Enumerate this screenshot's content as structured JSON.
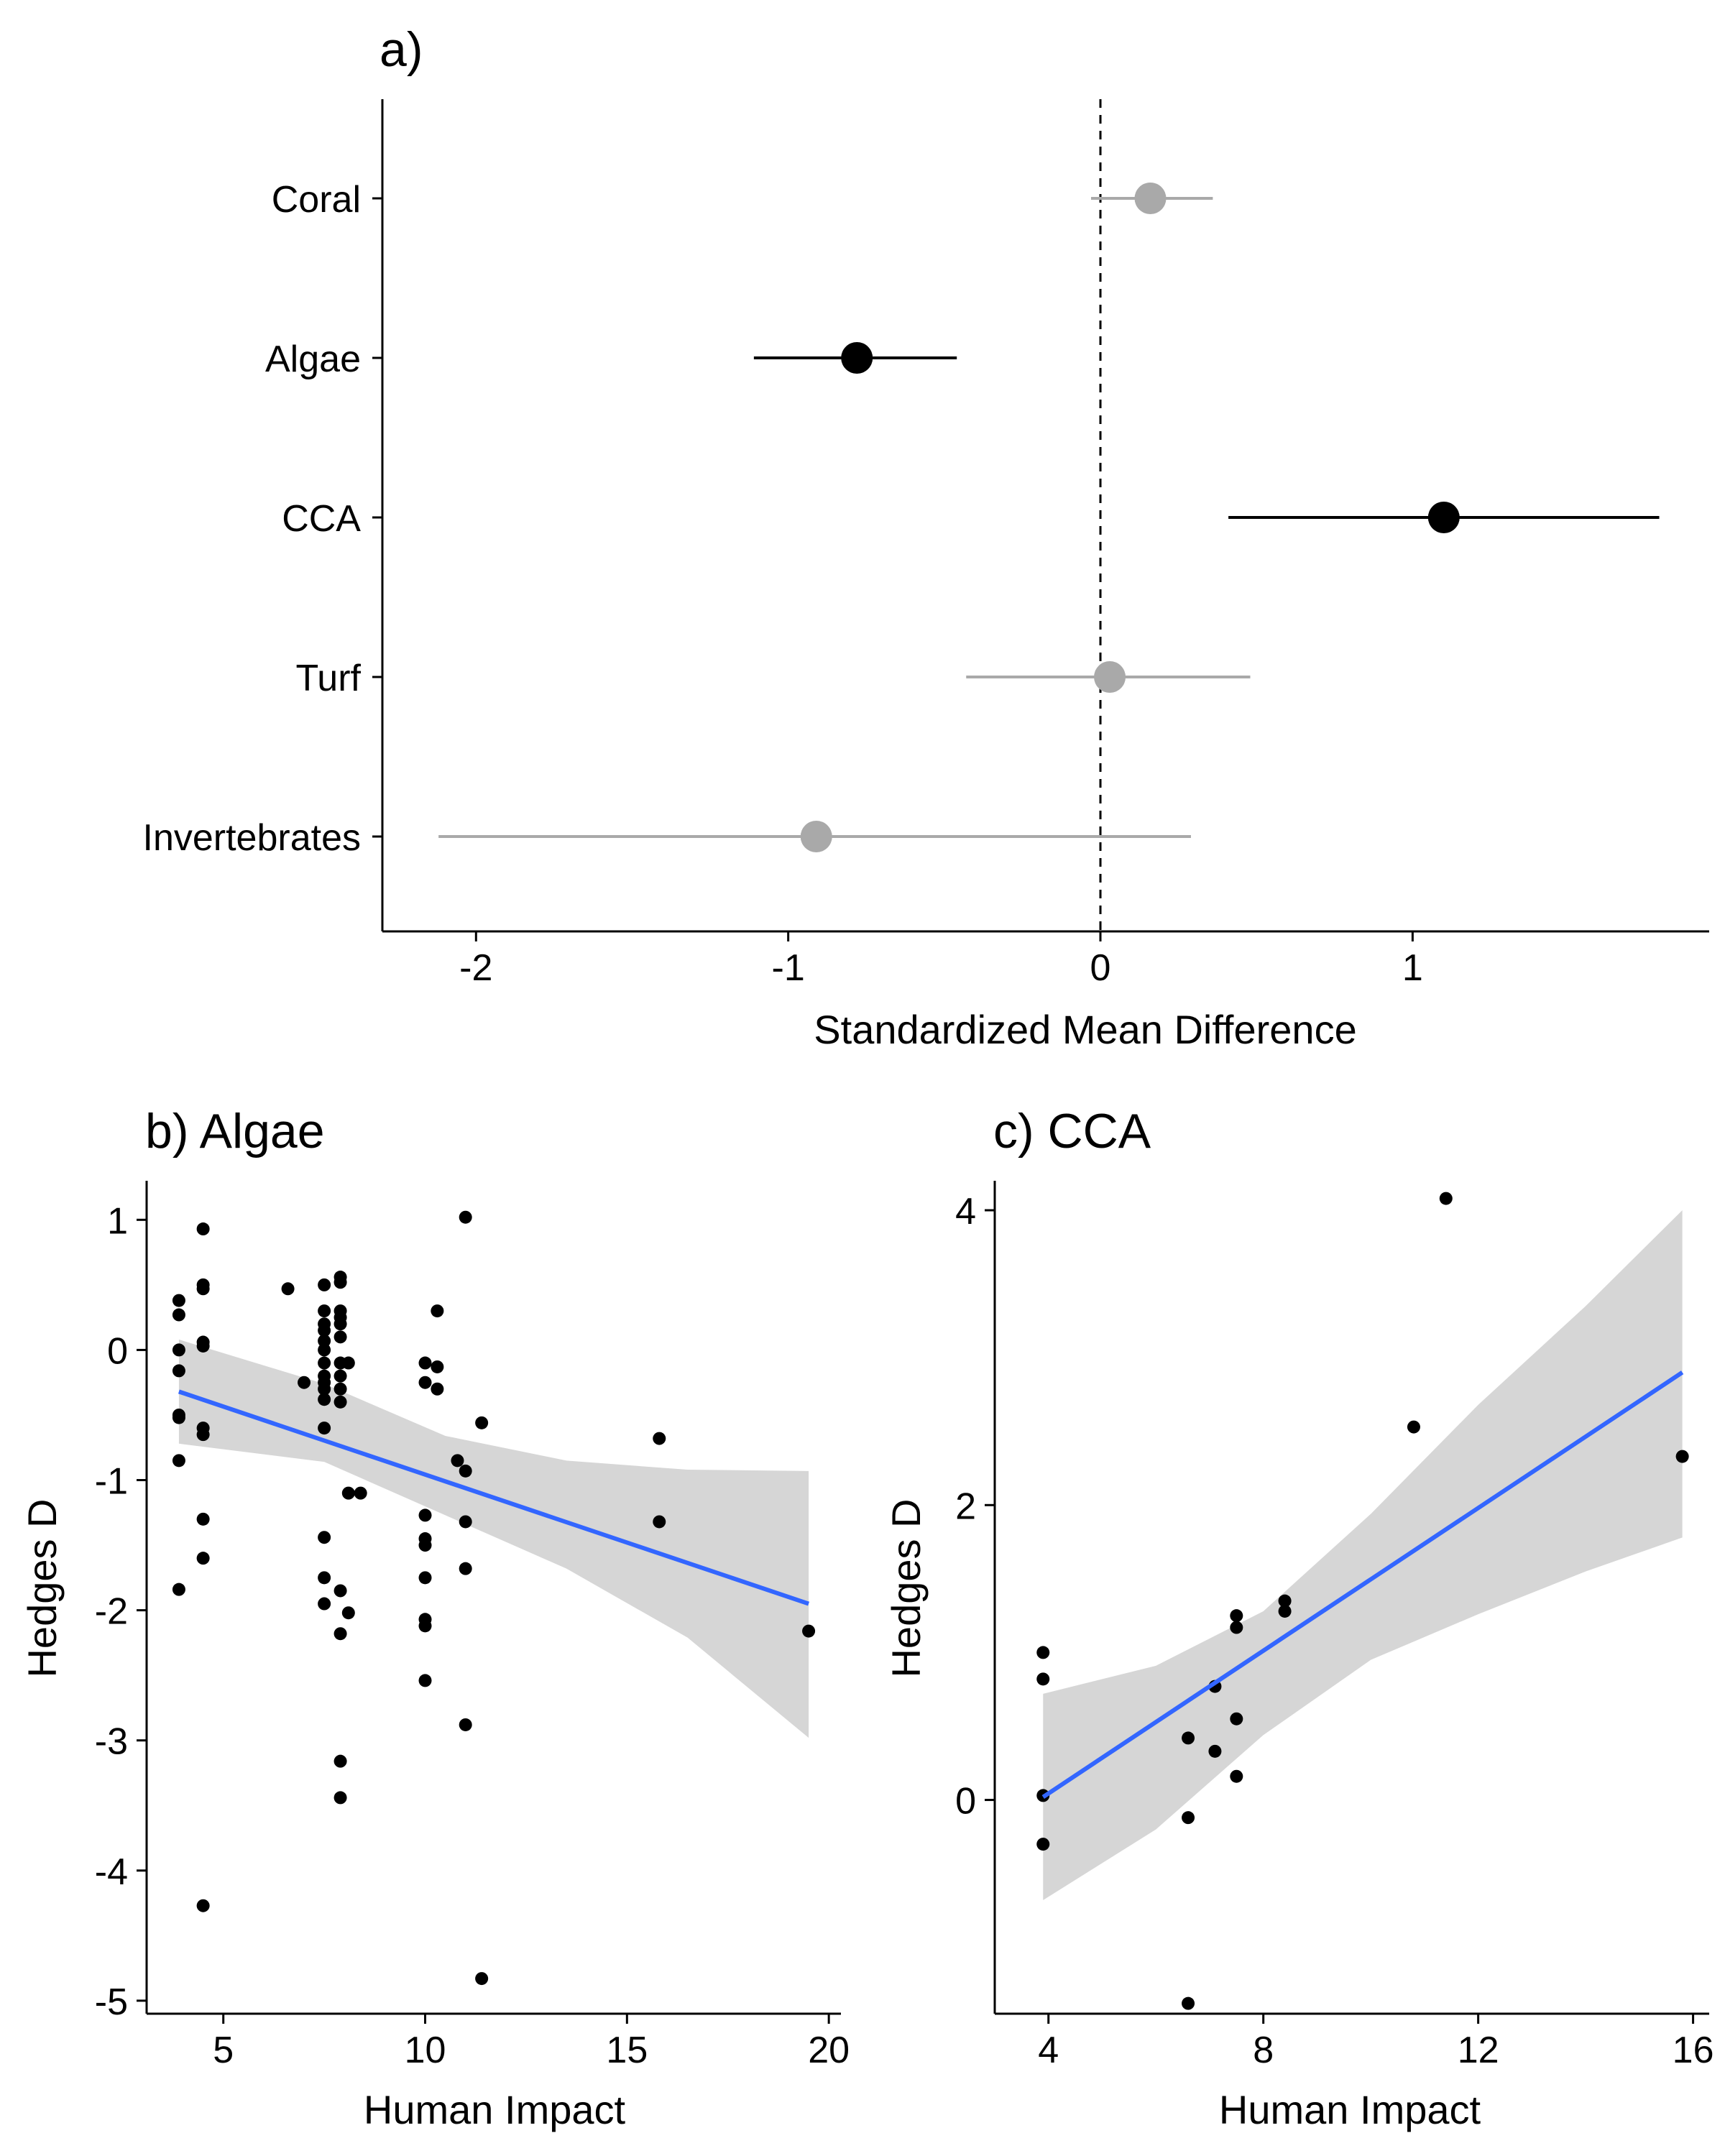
{
  "colors": {
    "significant": "#000000",
    "nonsignificant": "#a9a9a9",
    "fit_line": "#3366ff",
    "ribbon": "#d6d6d6",
    "point": "#000000"
  },
  "chart_data": [
    {
      "type": "scatter",
      "subtype": "forest-plot",
      "title": "a)",
      "xlabel": "Standardized Mean Difference",
      "ylabel": "",
      "xlim": [
        -2.3,
        1.95
      ],
      "xticks": [
        "-2",
        "-1",
        "0",
        "1"
      ],
      "reference_line_x": 0,
      "grid": false,
      "categories": [
        "Coral",
        "Algae",
        "CCA",
        "Turf",
        "Invertebrates"
      ],
      "estimates": [
        {
          "category": "Coral",
          "mean": 0.16,
          "lower": -0.03,
          "upper": 0.36,
          "significant": false
        },
        {
          "category": "Algae",
          "mean": -0.78,
          "lower": -1.11,
          "upper": -0.46,
          "significant": true
        },
        {
          "category": "CCA",
          "mean": 1.1,
          "lower": 0.41,
          "upper": 1.79,
          "significant": true
        },
        {
          "category": "Turf",
          "mean": 0.03,
          "lower": -0.43,
          "upper": 0.48,
          "significant": false
        },
        {
          "category": "Invertebrates",
          "mean": -0.91,
          "lower": -2.12,
          "upper": 0.29,
          "significant": false
        }
      ]
    },
    {
      "type": "scatter",
      "title": "b) Algae",
      "xlabel": "Human Impact",
      "ylabel": "Hedges D",
      "xlim": [
        3.1,
        20.3
      ],
      "ylim": [
        -5.1,
        1.3
      ],
      "xticks": [
        "5",
        "10",
        "15",
        "20"
      ],
      "yticks": [
        "1",
        "0",
        "-1",
        "-2",
        "-3",
        "-4",
        "-5"
      ],
      "grid": false,
      "points": [
        [
          3.9,
          0.38
        ],
        [
          3.9,
          0.27
        ],
        [
          3.9,
          0.0
        ],
        [
          3.9,
          -0.16
        ],
        [
          3.9,
          -0.5
        ],
        [
          3.9,
          -0.52
        ],
        [
          3.9,
          -0.85
        ],
        [
          3.9,
          -1.84
        ],
        [
          4.5,
          0.93
        ],
        [
          4.5,
          0.5
        ],
        [
          4.5,
          0.47
        ],
        [
          4.5,
          0.06
        ],
        [
          4.5,
          0.03
        ],
        [
          4.5,
          -0.6
        ],
        [
          4.5,
          -0.65
        ],
        [
          4.5,
          -1.3
        ],
        [
          4.5,
          -1.6
        ],
        [
          4.5,
          -4.27
        ],
        [
          6.6,
          0.47
        ],
        [
          7.0,
          -0.25
        ],
        [
          7.5,
          0.5
        ],
        [
          7.5,
          0.3
        ],
        [
          7.5,
          0.2
        ],
        [
          7.5,
          0.15
        ],
        [
          7.5,
          0.07
        ],
        [
          7.5,
          0.0
        ],
        [
          7.5,
          -0.1
        ],
        [
          7.5,
          -0.2
        ],
        [
          7.5,
          -0.25
        ],
        [
          7.5,
          -0.3
        ],
        [
          7.5,
          -0.38
        ],
        [
          7.5,
          -0.6
        ],
        [
          7.5,
          -1.44
        ],
        [
          7.5,
          -1.75
        ],
        [
          7.5,
          -1.95
        ],
        [
          7.9,
          0.56
        ],
        [
          7.9,
          0.52
        ],
        [
          7.9,
          0.3
        ],
        [
          7.9,
          0.25
        ],
        [
          7.9,
          0.2
        ],
        [
          7.9,
          0.1
        ],
        [
          7.9,
          -0.1
        ],
        [
          7.9,
          -0.2
        ],
        [
          7.9,
          -0.3
        ],
        [
          7.9,
          -0.4
        ],
        [
          7.9,
          -1.85
        ],
        [
          7.9,
          -2.18
        ],
        [
          7.9,
          -3.16
        ],
        [
          7.9,
          -3.44
        ],
        [
          8.1,
          -0.1
        ],
        [
          8.1,
          -1.1
        ],
        [
          8.1,
          -2.02
        ],
        [
          8.4,
          -1.1
        ],
        [
          10.0,
          -0.1
        ],
        [
          10.0,
          -0.25
        ],
        [
          10.0,
          -1.27
        ],
        [
          10.0,
          -1.45
        ],
        [
          10.0,
          -1.5
        ],
        [
          10.0,
          -1.75
        ],
        [
          10.0,
          -2.07
        ],
        [
          10.0,
          -2.12
        ],
        [
          10.0,
          -2.54
        ],
        [
          10.3,
          0.3
        ],
        [
          10.3,
          -0.13
        ],
        [
          10.3,
          -0.3
        ],
        [
          10.8,
          -0.85
        ],
        [
          11.0,
          1.02
        ],
        [
          11.0,
          -0.93
        ],
        [
          11.0,
          -1.32
        ],
        [
          11.0,
          -1.68
        ],
        [
          11.0,
          -2.88
        ],
        [
          11.4,
          -0.56
        ],
        [
          11.4,
          -4.83
        ],
        [
          15.8,
          -0.68
        ],
        [
          15.8,
          -1.32
        ],
        [
          19.5,
          -2.16
        ]
      ],
      "fit": {
        "x": [
          3.9,
          19.5
        ],
        "y": [
          -0.32,
          -1.95
        ]
      },
      "ribbon": {
        "x": [
          3.9,
          7.5,
          10.5,
          13.5,
          16.5,
          19.5
        ],
        "lower": [
          -0.72,
          -0.86,
          -1.27,
          -1.68,
          -2.21,
          -2.98
        ],
        "upper": [
          0.08,
          -0.26,
          -0.66,
          -0.85,
          -0.92,
          -0.93
        ]
      }
    },
    {
      "type": "scatter",
      "title": "c) CCA",
      "xlabel": "Human Impact",
      "ylabel": "Hedges D",
      "xlim": [
        3.0,
        16.3
      ],
      "ylim": [
        -1.45,
        4.2
      ],
      "xticks": [
        "4",
        "8",
        "12",
        "16"
      ],
      "yticks": [
        "4",
        "2",
        "0"
      ],
      "grid": false,
      "points": [
        [
          3.9,
          1.0
        ],
        [
          3.9,
          0.82
        ],
        [
          3.9,
          0.03
        ],
        [
          3.9,
          -0.3
        ],
        [
          6.6,
          0.42
        ],
        [
          6.6,
          -0.12
        ],
        [
          6.6,
          -1.38
        ],
        [
          7.1,
          0.77
        ],
        [
          7.1,
          0.33
        ],
        [
          7.5,
          1.25
        ],
        [
          7.5,
          1.17
        ],
        [
          7.5,
          0.55
        ],
        [
          7.5,
          0.16
        ],
        [
          8.4,
          1.35
        ],
        [
          8.4,
          1.28
        ],
        [
          10.8,
          2.53
        ],
        [
          11.4,
          4.08
        ],
        [
          15.8,
          2.33
        ]
      ],
      "fit": {
        "x": [
          3.9,
          15.8
        ],
        "y": [
          0.02,
          2.9
        ]
      },
      "ribbon": {
        "x": [
          3.9,
          6.0,
          8.0,
          10.0,
          12.0,
          14.0,
          15.8
        ],
        "lower": [
          -0.68,
          -0.2,
          0.44,
          0.95,
          1.26,
          1.55,
          1.78
        ],
        "upper": [
          0.72,
          0.91,
          1.28,
          1.94,
          2.68,
          3.35,
          4.0
        ]
      }
    }
  ]
}
